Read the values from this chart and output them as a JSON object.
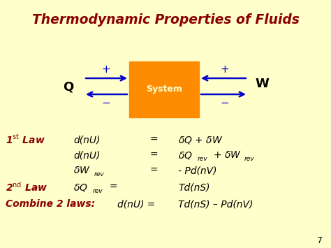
{
  "title": "Thermodynamic Properties of Fluids",
  "title_color": "#8B0000",
  "bg_color": "#FFFFCC",
  "system_box_color": "#FF8C00",
  "system_text": "System",
  "system_text_color": "#FFFFCC",
  "arrow_color": "#0000CC",
  "label_Q": "Q",
  "label_W": "W",
  "dark_red": "#8B0000",
  "black": "#000000"
}
